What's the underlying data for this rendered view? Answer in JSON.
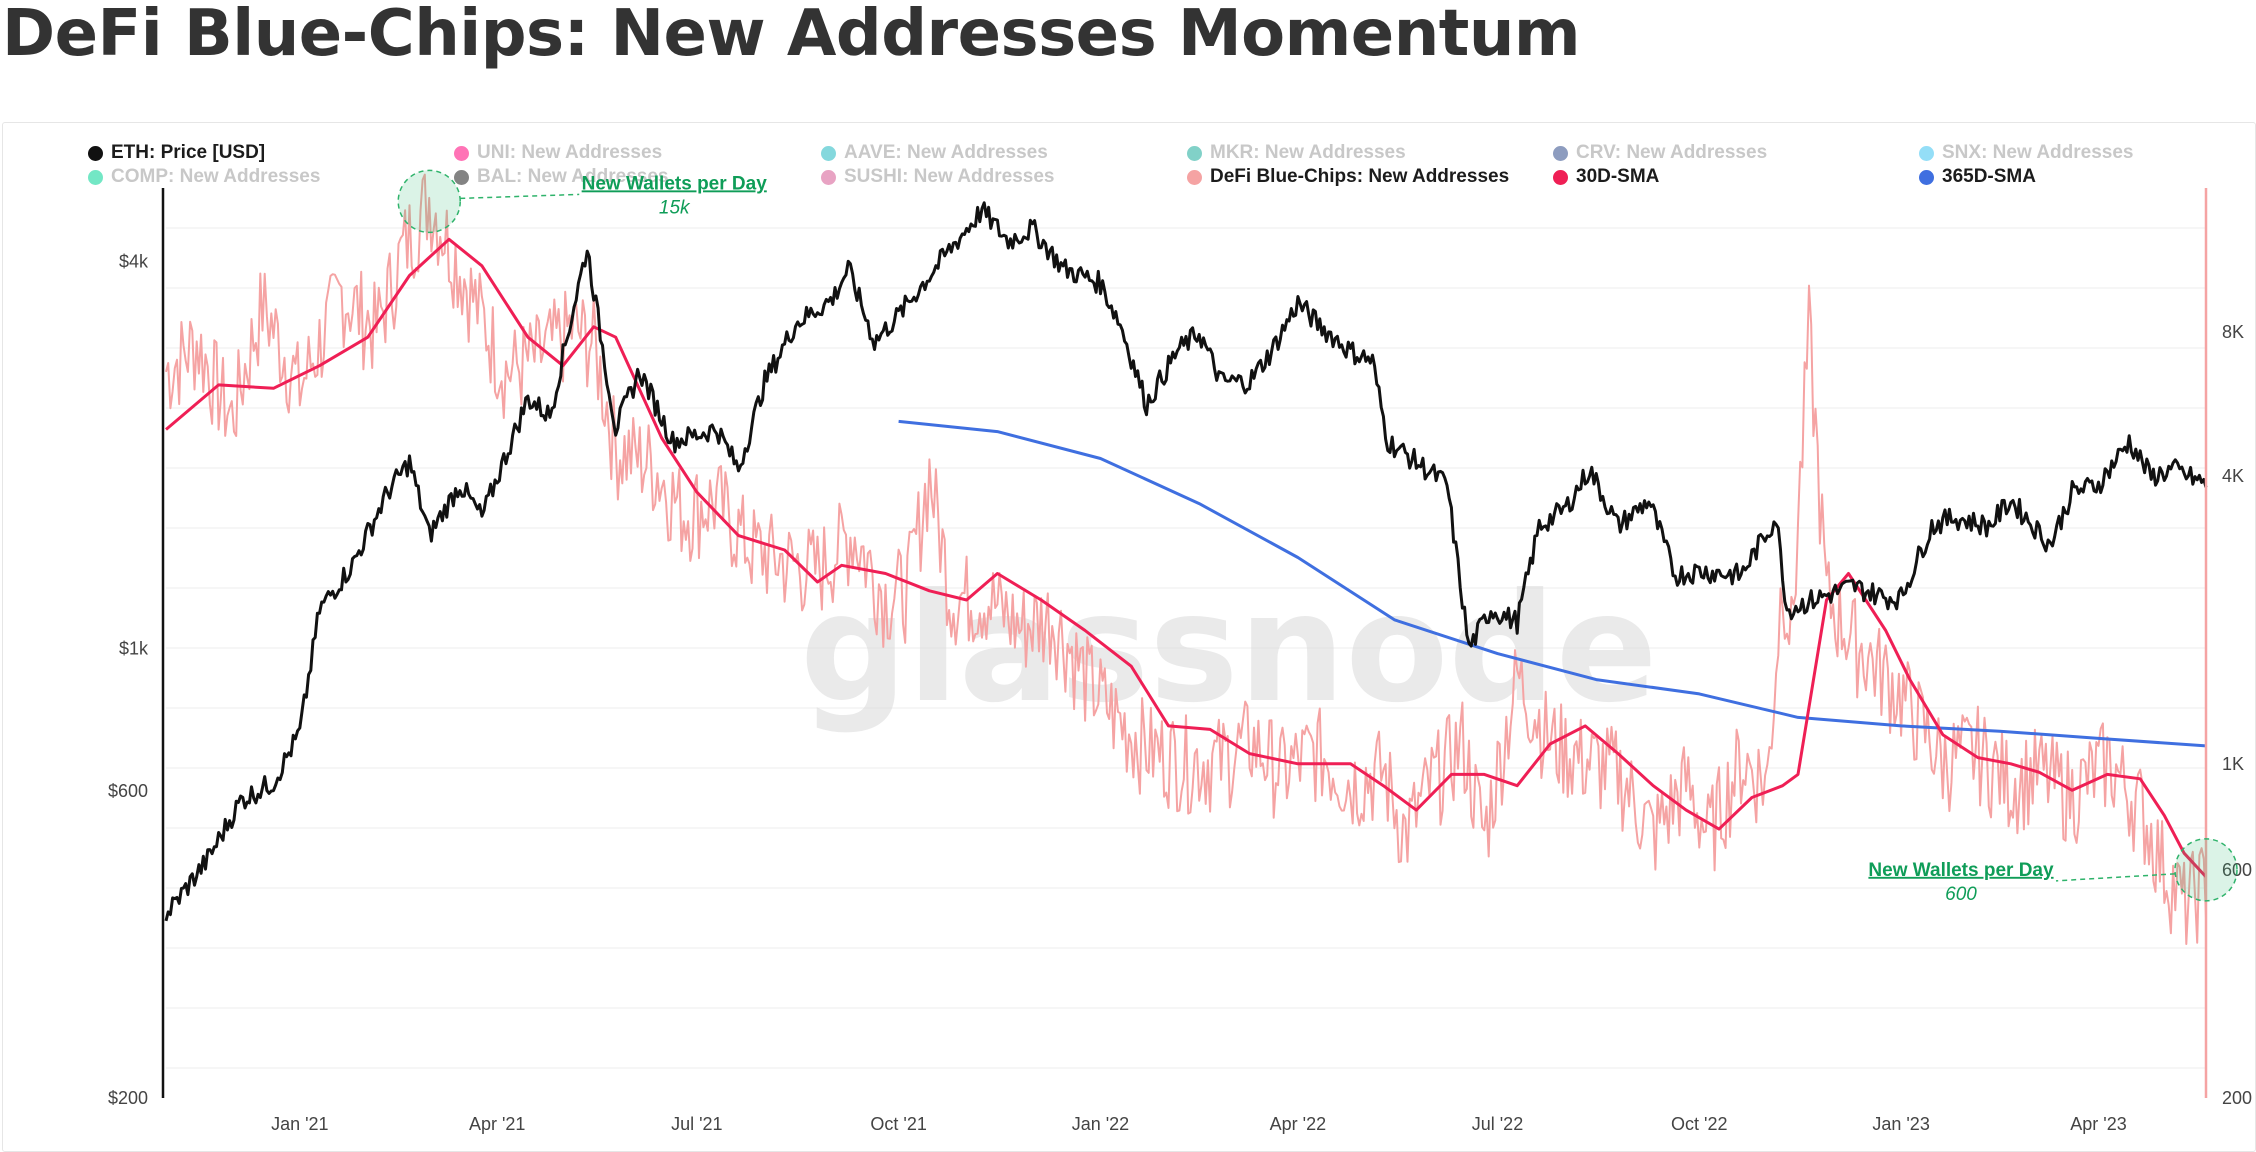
{
  "title": "DeFi Blue-Chips: New Addresses Momentum",
  "watermark": "glassnode",
  "legend": [
    {
      "label": "ETH: Price [USD]",
      "color": "#111111",
      "enabled": true
    },
    {
      "label": "UNI: New Addresses",
      "color": "#ff007a",
      "enabled": false
    },
    {
      "label": "AAVE: New Addresses",
      "color": "#1fb8c1",
      "enabled": false
    },
    {
      "label": "MKR: New Addresses",
      "color": "#1aab9b",
      "enabled": false
    },
    {
      "label": "CRV: New Addresses",
      "color": "#2f4a8a",
      "enabled": false
    },
    {
      "label": "SNX: New Addresses",
      "color": "#3cc3f0",
      "enabled": false
    },
    {
      "label": "COMP: New Addresses",
      "color": "#00d395",
      "enabled": false
    },
    {
      "label": "BAL: New Addresses",
      "color": "#1e1e1e",
      "enabled": false
    },
    {
      "label": "SUSHI: New Addresses",
      "color": "#d65892",
      "enabled": false
    },
    {
      "label": "DeFi Blue-Chips: New Addresses",
      "color": "#f5a3a3",
      "enabled": true
    },
    {
      "label": "30D-SMA",
      "color": "#ef1f55",
      "enabled": true
    },
    {
      "label": "365D-SMA",
      "color": "#3f6fe0",
      "enabled": true
    }
  ],
  "chart_data": {
    "type": "line",
    "x_ticks": [
      "Jan '21",
      "Apr '21",
      "Jul '21",
      "Oct '21",
      "Jan '22",
      "Apr '22",
      "Jul '22",
      "Oct '22",
      "Jan '23",
      "Apr '23"
    ],
    "x_tick_dates": [
      "2021-01-01",
      "2021-04-01",
      "2021-07-01",
      "2021-10-01",
      "2022-01-01",
      "2022-04-01",
      "2022-07-01",
      "2022-10-01",
      "2023-01-01",
      "2023-04-01"
    ],
    "x_range": [
      "2020-11-01",
      "2023-05-20"
    ],
    "y_left": {
      "scale": "log",
      "ticks": [
        "$200",
        "$600",
        "$1k",
        "$4k"
      ],
      "tick_values": [
        200,
        600,
        1000,
        4000
      ],
      "range": [
        200,
        5200
      ]
    },
    "y_right": {
      "scale": "log",
      "ticks": [
        "200",
        "600",
        "1K",
        "4K",
        "8K"
      ],
      "tick_values": [
        200,
        600,
        1000,
        4000,
        8000
      ],
      "range": [
        200,
        16000
      ]
    },
    "series": [
      {
        "name": "ETH: Price [USD]",
        "axis": "left",
        "color": "#111111",
        "points": [
          [
            "2020-11-01",
            385
          ],
          [
            "2020-11-20",
            470
          ],
          [
            "2020-12-05",
            580
          ],
          [
            "2020-12-20",
            620
          ],
          [
            "2021-01-01",
            740
          ],
          [
            "2021-01-10",
            1150
          ],
          [
            "2021-01-25",
            1350
          ],
          [
            "2021-02-10",
            1750
          ],
          [
            "2021-02-20",
            1950
          ],
          [
            "2021-03-01",
            1500
          ],
          [
            "2021-03-15",
            1800
          ],
          [
            "2021-03-25",
            1600
          ],
          [
            "2021-04-05",
            2000
          ],
          [
            "2021-04-15",
            2450
          ],
          [
            "2021-04-25",
            2300
          ],
          [
            "2021-05-05",
            3300
          ],
          [
            "2021-05-12",
            4200
          ],
          [
            "2021-05-20",
            2800
          ],
          [
            "2021-05-25",
            2200
          ],
          [
            "2021-06-05",
            2700
          ],
          [
            "2021-06-20",
            2100
          ],
          [
            "2021-07-01",
            2150
          ],
          [
            "2021-07-10",
            2200
          ],
          [
            "2021-07-20",
            1900
          ],
          [
            "2021-08-01",
            2600
          ],
          [
            "2021-08-15",
            3200
          ],
          [
            "2021-09-01",
            3500
          ],
          [
            "2021-09-08",
            3900
          ],
          [
            "2021-09-20",
            3000
          ],
          [
            "2021-10-01",
            3300
          ],
          [
            "2021-10-15",
            3800
          ],
          [
            "2021-10-25",
            4200
          ],
          [
            "2021-11-08",
            4800
          ],
          [
            "2021-11-20",
            4300
          ],
          [
            "2021-12-01",
            4500
          ],
          [
            "2021-12-15",
            3900
          ],
          [
            "2022-01-01",
            3700
          ],
          [
            "2022-01-10",
            3200
          ],
          [
            "2022-01-22",
            2400
          ],
          [
            "2022-02-05",
            2900
          ],
          [
            "2022-02-15",
            3100
          ],
          [
            "2022-02-25",
            2600
          ],
          [
            "2022-03-10",
            2600
          ],
          [
            "2022-03-20",
            2900
          ],
          [
            "2022-04-01",
            3450
          ],
          [
            "2022-04-10",
            3200
          ],
          [
            "2022-04-25",
            2900
          ],
          [
            "2022-05-05",
            2800
          ],
          [
            "2022-05-12",
            2100
          ],
          [
            "2022-05-25",
            1950
          ],
          [
            "2022-06-08",
            1800
          ],
          [
            "2022-06-18",
            1000
          ],
          [
            "2022-06-28",
            1150
          ],
          [
            "2022-07-10",
            1100
          ],
          [
            "2022-07-20",
            1550
          ],
          [
            "2022-08-01",
            1650
          ],
          [
            "2022-08-12",
            1900
          ],
          [
            "2022-08-25",
            1550
          ],
          [
            "2022-09-08",
            1700
          ],
          [
            "2022-09-20",
            1300
          ],
          [
            "2022-10-01",
            1320
          ],
          [
            "2022-10-20",
            1300
          ],
          [
            "2022-11-05",
            1600
          ],
          [
            "2022-11-10",
            1150
          ],
          [
            "2022-11-25",
            1200
          ],
          [
            "2022-12-10",
            1250
          ],
          [
            "2022-12-25",
            1200
          ],
          [
            "2023-01-01",
            1200
          ],
          [
            "2023-01-15",
            1550
          ],
          [
            "2023-01-25",
            1600
          ],
          [
            "2023-02-10",
            1550
          ],
          [
            "2023-02-20",
            1700
          ],
          [
            "2023-03-10",
            1450
          ],
          [
            "2023-03-20",
            1750
          ],
          [
            "2023-04-01",
            1800
          ],
          [
            "2023-04-15",
            2100
          ],
          [
            "2023-04-25",
            1850
          ],
          [
            "2023-05-05",
            1900
          ],
          [
            "2023-05-20",
            1800
          ]
        ]
      },
      {
        "name": "DeFi Blue-Chips: New Addresses",
        "axis": "right",
        "color": "#f5a3a3",
        "points": [
          [
            "2020-11-01",
            6500
          ],
          [
            "2020-11-15",
            7500
          ],
          [
            "2020-12-01",
            5200
          ],
          [
            "2020-12-15",
            9000
          ],
          [
            "2021-01-01",
            6000
          ],
          [
            "2021-01-20",
            9500
          ],
          [
            "2021-02-05",
            8000
          ],
          [
            "2021-02-18",
            12000
          ],
          [
            "2021-03-01",
            15000
          ],
          [
            "2021-03-20",
            9500
          ],
          [
            "2021-04-05",
            6500
          ],
          [
            "2021-04-20",
            7000
          ],
          [
            "2021-05-05",
            8000
          ],
          [
            "2021-05-15",
            7500
          ],
          [
            "2021-05-25",
            4500
          ],
          [
            "2021-06-10",
            4200
          ],
          [
            "2021-06-25",
            3300
          ],
          [
            "2021-07-10",
            3500
          ],
          [
            "2021-07-25",
            2800
          ],
          [
            "2021-08-10",
            2600
          ],
          [
            "2021-08-25",
            2500
          ],
          [
            "2021-09-10",
            3000
          ],
          [
            "2021-09-25",
            2200
          ],
          [
            "2021-10-05",
            2300
          ],
          [
            "2021-10-15",
            4000
          ],
          [
            "2021-10-25",
            2200
          ],
          [
            "2021-11-10",
            2200
          ],
          [
            "2021-11-25",
            1900
          ],
          [
            "2021-12-10",
            2000
          ],
          [
            "2021-12-25",
            1500
          ],
          [
            "2022-01-10",
            1200
          ],
          [
            "2022-01-25",
            1050
          ],
          [
            "2022-02-10",
            1000
          ],
          [
            "2022-02-25",
            1000
          ],
          [
            "2022-03-10",
            1100
          ],
          [
            "2022-03-25",
            950
          ],
          [
            "2022-04-10",
            1050
          ],
          [
            "2022-04-25",
            900
          ],
          [
            "2022-05-10",
            950
          ],
          [
            "2022-05-20",
            700
          ],
          [
            "2022-06-01",
            900
          ],
          [
            "2022-06-15",
            1100
          ],
          [
            "2022-06-25",
            700
          ],
          [
            "2022-07-10",
            1500
          ],
          [
            "2022-07-25",
            1100
          ],
          [
            "2022-08-10",
            1000
          ],
          [
            "2022-08-25",
            950
          ],
          [
            "2022-09-10",
            700
          ],
          [
            "2022-09-25",
            900
          ],
          [
            "2022-10-05",
            700
          ],
          [
            "2022-10-20",
            1000
          ],
          [
            "2022-11-01",
            900
          ],
          [
            "2022-11-08",
            2500
          ],
          [
            "2022-11-12",
            1800
          ],
          [
            "2022-11-20",
            8000
          ],
          [
            "2022-11-28",
            2200
          ],
          [
            "2022-12-10",
            1800
          ],
          [
            "2022-12-25",
            1500
          ],
          [
            "2023-01-05",
            1300
          ],
          [
            "2023-01-20",
            1000
          ],
          [
            "2023-02-05",
            1050
          ],
          [
            "2023-02-20",
            900
          ],
          [
            "2023-03-05",
            950
          ],
          [
            "2023-03-20",
            850
          ],
          [
            "2023-04-05",
            1000
          ],
          [
            "2023-04-20",
            800
          ],
          [
            "2023-05-01",
            600
          ],
          [
            "2023-05-10",
            500
          ],
          [
            "2023-05-20",
            560
          ]
        ]
      },
      {
        "name": "30D-SMA",
        "axis": "right",
        "color": "#ef1f55",
        "points": [
          [
            "2020-11-01",
            5000
          ],
          [
            "2020-11-25",
            6200
          ],
          [
            "2020-12-20",
            6100
          ],
          [
            "2021-01-10",
            6800
          ],
          [
            "2021-02-01",
            7800
          ],
          [
            "2021-02-20",
            10500
          ],
          [
            "2021-03-10",
            12500
          ],
          [
            "2021-03-25",
            11000
          ],
          [
            "2021-04-15",
            7800
          ],
          [
            "2021-05-01",
            6800
          ],
          [
            "2021-05-15",
            8200
          ],
          [
            "2021-05-25",
            7800
          ],
          [
            "2021-06-15",
            4800
          ],
          [
            "2021-07-01",
            3700
          ],
          [
            "2021-07-20",
            3000
          ],
          [
            "2021-08-10",
            2800
          ],
          [
            "2021-08-25",
            2400
          ],
          [
            "2021-09-05",
            2600
          ],
          [
            "2021-09-25",
            2500
          ],
          [
            "2021-10-15",
            2300
          ],
          [
            "2021-11-01",
            2200
          ],
          [
            "2021-11-15",
            2500
          ],
          [
            "2021-12-05",
            2200
          ],
          [
            "2021-12-25",
            1900
          ],
          [
            "2022-01-15",
            1600
          ],
          [
            "2022-02-01",
            1200
          ],
          [
            "2022-02-20",
            1180
          ],
          [
            "2022-03-10",
            1050
          ],
          [
            "2022-04-01",
            1000
          ],
          [
            "2022-04-25",
            1000
          ],
          [
            "2022-05-10",
            900
          ],
          [
            "2022-05-25",
            800
          ],
          [
            "2022-06-10",
            950
          ],
          [
            "2022-06-25",
            950
          ],
          [
            "2022-07-10",
            900
          ],
          [
            "2022-07-25",
            1100
          ],
          [
            "2022-08-10",
            1200
          ],
          [
            "2022-08-25",
            1050
          ],
          [
            "2022-09-10",
            900
          ],
          [
            "2022-09-25",
            800
          ],
          [
            "2022-10-10",
            730
          ],
          [
            "2022-10-25",
            850
          ],
          [
            "2022-11-08",
            900
          ],
          [
            "2022-11-15",
            950
          ],
          [
            "2022-11-28",
            2200
          ],
          [
            "2022-12-08",
            2500
          ],
          [
            "2022-12-25",
            1900
          ],
          [
            "2023-01-05",
            1500
          ],
          [
            "2023-01-20",
            1150
          ],
          [
            "2023-02-05",
            1030
          ],
          [
            "2023-02-20",
            1000
          ],
          [
            "2023-03-05",
            960
          ],
          [
            "2023-03-20",
            880
          ],
          [
            "2023-04-05",
            950
          ],
          [
            "2023-04-20",
            930
          ],
          [
            "2023-05-01",
            780
          ],
          [
            "2023-05-10",
            650
          ],
          [
            "2023-05-20",
            580
          ]
        ]
      },
      {
        "name": "365D-SMA",
        "axis": "right",
        "color": "#3f6fe0",
        "points": [
          [
            "2021-10-01",
            5200
          ],
          [
            "2021-11-15",
            4950
          ],
          [
            "2022-01-01",
            4350
          ],
          [
            "2022-02-15",
            3500
          ],
          [
            "2022-04-01",
            2700
          ],
          [
            "2022-05-15",
            2000
          ],
          [
            "2022-07-01",
            1700
          ],
          [
            "2022-08-15",
            1500
          ],
          [
            "2022-10-01",
            1400
          ],
          [
            "2022-11-15",
            1250
          ],
          [
            "2023-01-01",
            1200
          ],
          [
            "2023-02-15",
            1170
          ],
          [
            "2023-04-01",
            1130
          ],
          [
            "2023-05-20",
            1090
          ]
        ]
      }
    ],
    "annotations": [
      {
        "title": "New Wallets per Day",
        "value": "15k",
        "date": "2021-03-01",
        "y": 15000
      },
      {
        "title": "New Wallets per Day",
        "value": "600",
        "date": "2023-05-20",
        "y": 600
      }
    ]
  }
}
